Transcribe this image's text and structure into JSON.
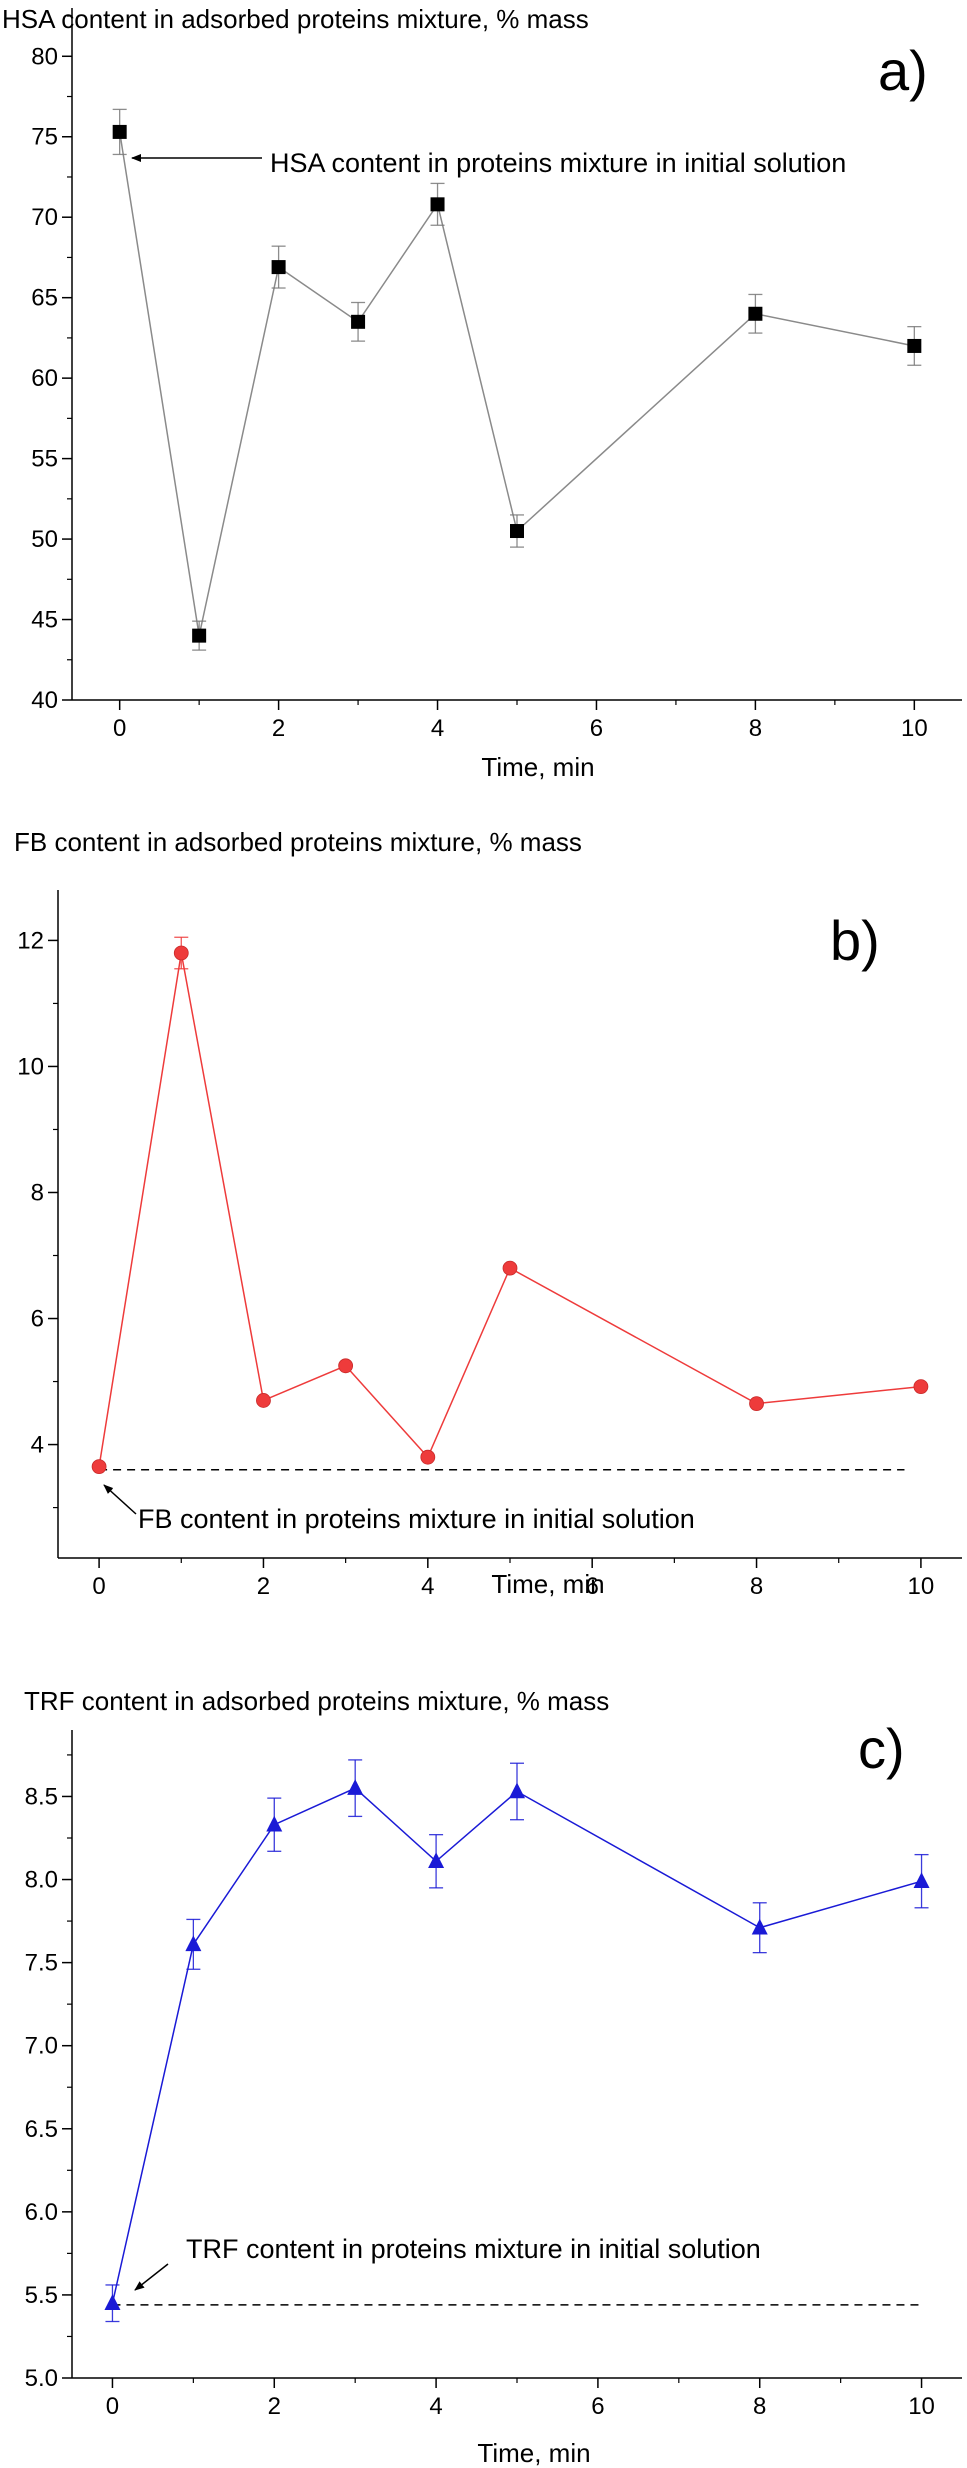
{
  "chart_data": [
    {
      "type": "line",
      "title": "HSA content in adsorbed proteins mixture, % mass",
      "panel_label": "a)",
      "xlabel": "Time, min",
      "ylabel": "",
      "xlim": [
        -0.6,
        10.6
      ],
      "ylim": [
        40,
        83
      ],
      "xticks": [
        0,
        2,
        4,
        6,
        8,
        10
      ],
      "yticks": [
        40,
        45,
        50,
        55,
        60,
        65,
        70,
        75,
        80
      ],
      "grid": false,
      "legend": "none",
      "color": "#000000",
      "line_color": "#8a8a8a",
      "marker": "square",
      "series": [
        {
          "x": [
            0,
            1,
            2,
            3,
            4,
            5,
            8,
            10
          ],
          "y": [
            75.3,
            44.0,
            66.9,
            63.5,
            70.8,
            50.5,
            64.0,
            62.0
          ],
          "err": [
            1.4,
            0.9,
            1.3,
            1.2,
            1.3,
            1.0,
            1.2,
            1.2
          ]
        }
      ],
      "reference_line": null,
      "annotation": {
        "text": "HSA content in proteins mixture in initial solution",
        "x": 0,
        "y": 75.3
      }
    },
    {
      "type": "line",
      "title": "FB content in adsorbed proteins mixture, % mass",
      "panel_label": "b)",
      "xlabel": "Time, min",
      "ylabel": "",
      "xlim": [
        -0.5,
        10.5
      ],
      "ylim": [
        2.2,
        12.8
      ],
      "xticks": [
        0,
        2,
        4,
        6,
        8,
        10
      ],
      "yticks": [
        4,
        6,
        8,
        10,
        12
      ],
      "grid": false,
      "legend": "none",
      "color": "#ee3b3b",
      "line_color": "#ee3b3b",
      "marker": "circle",
      "series": [
        {
          "x": [
            0,
            1,
            2,
            3,
            4,
            5,
            8,
            10
          ],
          "y": [
            3.65,
            11.8,
            4.7,
            5.25,
            3.8,
            6.8,
            4.65,
            4.92
          ],
          "err": [
            0,
            0.25,
            0,
            0,
            0,
            0,
            0,
            0
          ]
        }
      ],
      "reference_line": {
        "y": 3.6,
        "x_from": 0,
        "x_to": 9.8,
        "style": "dashed"
      },
      "annotation": {
        "text": "FB content in proteins mixture in initial solution",
        "x": 0,
        "y": 3.65
      }
    },
    {
      "type": "line",
      "title": "TRF content in adsorbed proteins mixture, % mass",
      "panel_label": "c)",
      "xlabel": "Time, min",
      "ylabel": "",
      "xlim": [
        -0.5,
        10.5
      ],
      "ylim": [
        5.0,
        8.9
      ],
      "xticks": [
        0,
        2,
        4,
        6,
        8,
        10
      ],
      "yticks": [
        5.0,
        5.5,
        6.0,
        6.5,
        7.0,
        7.5,
        8.0,
        8.5
      ],
      "ytick_decimals": 1,
      "grid": false,
      "legend": "none",
      "color": "#1a1ad6",
      "line_color": "#1a1ad6",
      "marker": "triangle",
      "series": [
        {
          "x": [
            0,
            1,
            2,
            3,
            4,
            5,
            8,
            10
          ],
          "y": [
            5.45,
            7.61,
            8.33,
            8.55,
            8.11,
            8.53,
            7.71,
            7.99
          ],
          "err": [
            0.11,
            0.15,
            0.16,
            0.17,
            0.16,
            0.17,
            0.15,
            0.16
          ]
        }
      ],
      "reference_line": {
        "y": 5.44,
        "x_from": 0,
        "x_to": 10,
        "style": "dashed"
      },
      "annotation": {
        "text": "TRF content in proteins mixture in initial solution",
        "x": 0,
        "y": 5.45
      }
    }
  ]
}
